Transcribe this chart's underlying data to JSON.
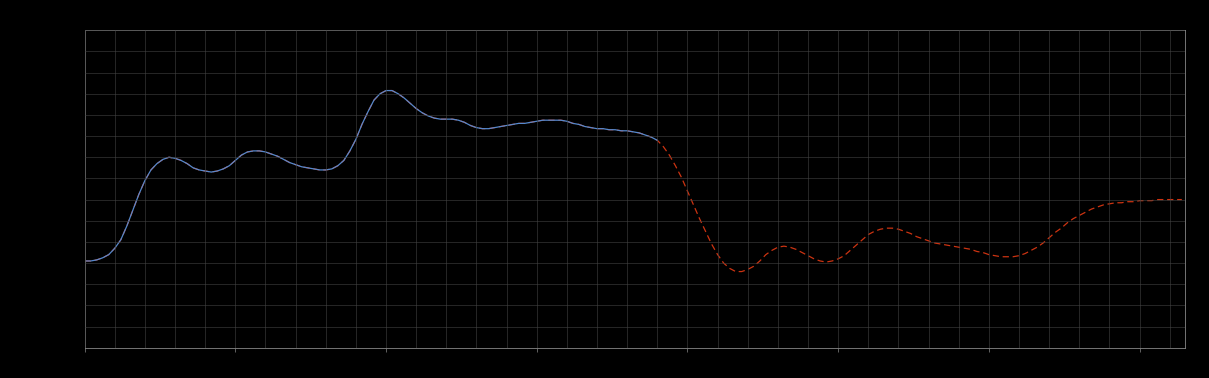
{
  "background_color": "#000000",
  "axes_bg_color": "#000000",
  "grid_color": "#444444",
  "blue_line_color": "#5588cc",
  "red_line_color": "#cc3311",
  "xlim": [
    0,
    365
  ],
  "ylim_min": -0.6,
  "ylim_max": 2.4,
  "figsize": [
    12.09,
    3.78
  ],
  "dpi": 100,
  "spine_color": "#888888",
  "tick_color": "#888888",
  "blue_x": [
    0,
    2,
    4,
    6,
    8,
    10,
    12,
    14,
    16,
    18,
    20,
    22,
    24,
    26,
    28,
    30,
    32,
    34,
    36,
    38,
    40,
    42,
    44,
    46,
    48,
    50,
    52,
    54,
    56,
    58,
    60,
    62,
    64,
    66,
    68,
    70,
    72,
    74,
    76,
    78,
    80,
    82,
    84,
    86,
    88,
    90,
    92,
    94,
    96,
    98,
    100,
    102,
    104,
    106,
    108,
    110,
    112,
    114,
    116,
    118,
    120,
    122,
    124,
    126,
    128,
    130,
    132,
    134,
    136,
    138,
    140,
    142,
    144,
    146,
    148,
    150,
    152,
    154,
    156,
    158,
    160,
    162,
    164,
    166,
    168,
    170,
    172,
    174,
    176,
    178,
    180,
    182,
    184,
    186,
    188,
    190
  ],
  "blue_y": [
    0.22,
    0.22,
    0.23,
    0.25,
    0.28,
    0.34,
    0.42,
    0.55,
    0.7,
    0.85,
    0.98,
    1.08,
    1.14,
    1.18,
    1.2,
    1.19,
    1.17,
    1.14,
    1.1,
    1.08,
    1.07,
    1.06,
    1.07,
    1.09,
    1.12,
    1.17,
    1.22,
    1.25,
    1.26,
    1.26,
    1.25,
    1.23,
    1.21,
    1.18,
    1.15,
    1.13,
    1.11,
    1.1,
    1.09,
    1.08,
    1.08,
    1.09,
    1.12,
    1.17,
    1.26,
    1.37,
    1.51,
    1.63,
    1.74,
    1.8,
    1.83,
    1.83,
    1.8,
    1.76,
    1.71,
    1.66,
    1.62,
    1.59,
    1.57,
    1.56,
    1.56,
    1.56,
    1.55,
    1.53,
    1.5,
    1.48,
    1.47,
    1.47,
    1.48,
    1.49,
    1.5,
    1.51,
    1.52,
    1.52,
    1.53,
    1.54,
    1.55,
    1.55,
    1.55,
    1.55,
    1.54,
    1.52,
    1.51,
    1.49,
    1.48,
    1.47,
    1.47,
    1.46,
    1.46,
    1.45,
    1.45,
    1.44,
    1.43,
    1.41,
    1.39,
    1.36
  ],
  "red_x": [
    0,
    2,
    4,
    6,
    8,
    10,
    12,
    14,
    16,
    18,
    20,
    22,
    24,
    26,
    28,
    30,
    32,
    34,
    36,
    38,
    40,
    42,
    44,
    46,
    48,
    50,
    52,
    54,
    56,
    58,
    60,
    62,
    64,
    66,
    68,
    70,
    72,
    74,
    76,
    78,
    80,
    82,
    84,
    86,
    88,
    90,
    92,
    94,
    96,
    98,
    100,
    102,
    104,
    106,
    108,
    110,
    112,
    114,
    116,
    118,
    120,
    122,
    124,
    126,
    128,
    130,
    132,
    134,
    136,
    138,
    140,
    142,
    144,
    146,
    148,
    150,
    152,
    154,
    156,
    158,
    160,
    162,
    164,
    166,
    168,
    170,
    172,
    174,
    176,
    178,
    180,
    182,
    184,
    186,
    188,
    190,
    192,
    194,
    196,
    198,
    200,
    202,
    204,
    206,
    208,
    210,
    212,
    214,
    216,
    218,
    220,
    222,
    224,
    226,
    228,
    230,
    232,
    234,
    236,
    238,
    240,
    242,
    244,
    246,
    248,
    250,
    252,
    254,
    256,
    258,
    260,
    262,
    264,
    266,
    268,
    270,
    272,
    274,
    276,
    278,
    280,
    282,
    284,
    286,
    288,
    290,
    292,
    294,
    296,
    298,
    300,
    302,
    304,
    306,
    308,
    310,
    312,
    314,
    316,
    318,
    320,
    322,
    324,
    326,
    328,
    330,
    332,
    334,
    336,
    338,
    340,
    342,
    344,
    346,
    348,
    350,
    352,
    354,
    356,
    358,
    360,
    362,
    364
  ],
  "red_y": [
    0.22,
    0.22,
    0.23,
    0.25,
    0.28,
    0.34,
    0.42,
    0.55,
    0.7,
    0.85,
    0.98,
    1.08,
    1.14,
    1.18,
    1.2,
    1.19,
    1.17,
    1.14,
    1.1,
    1.08,
    1.07,
    1.06,
    1.07,
    1.09,
    1.12,
    1.17,
    1.22,
    1.25,
    1.26,
    1.26,
    1.25,
    1.23,
    1.21,
    1.18,
    1.15,
    1.13,
    1.11,
    1.1,
    1.09,
    1.08,
    1.08,
    1.09,
    1.12,
    1.17,
    1.26,
    1.37,
    1.51,
    1.63,
    1.74,
    1.8,
    1.83,
    1.83,
    1.8,
    1.76,
    1.71,
    1.66,
    1.62,
    1.59,
    1.57,
    1.56,
    1.56,
    1.56,
    1.55,
    1.53,
    1.5,
    1.48,
    1.47,
    1.47,
    1.48,
    1.49,
    1.5,
    1.51,
    1.52,
    1.52,
    1.53,
    1.54,
    1.55,
    1.55,
    1.55,
    1.55,
    1.54,
    1.52,
    1.51,
    1.49,
    1.48,
    1.47,
    1.47,
    1.46,
    1.46,
    1.45,
    1.45,
    1.44,
    1.43,
    1.41,
    1.39,
    1.36,
    1.3,
    1.22,
    1.12,
    1.01,
    0.88,
    0.75,
    0.62,
    0.5,
    0.38,
    0.28,
    0.2,
    0.15,
    0.12,
    0.12,
    0.14,
    0.17,
    0.22,
    0.28,
    0.32,
    0.35,
    0.36,
    0.35,
    0.33,
    0.3,
    0.27,
    0.24,
    0.22,
    0.21,
    0.22,
    0.24,
    0.27,
    0.32,
    0.37,
    0.42,
    0.47,
    0.5,
    0.52,
    0.53,
    0.53,
    0.52,
    0.5,
    0.48,
    0.45,
    0.43,
    0.41,
    0.39,
    0.38,
    0.37,
    0.36,
    0.35,
    0.34,
    0.33,
    0.31,
    0.3,
    0.28,
    0.27,
    0.26,
    0.26,
    0.26,
    0.27,
    0.29,
    0.32,
    0.35,
    0.39,
    0.44,
    0.49,
    0.53,
    0.58,
    0.62,
    0.65,
    0.68,
    0.71,
    0.73,
    0.75,
    0.76,
    0.77,
    0.77,
    0.78,
    0.78,
    0.79,
    0.79,
    0.79,
    0.8,
    0.8,
    0.8,
    0.8,
    0.8
  ],
  "x_major_interval": 50,
  "x_minor_interval": 10,
  "y_major_interval": 1.0,
  "y_minor_interval": 0.2
}
